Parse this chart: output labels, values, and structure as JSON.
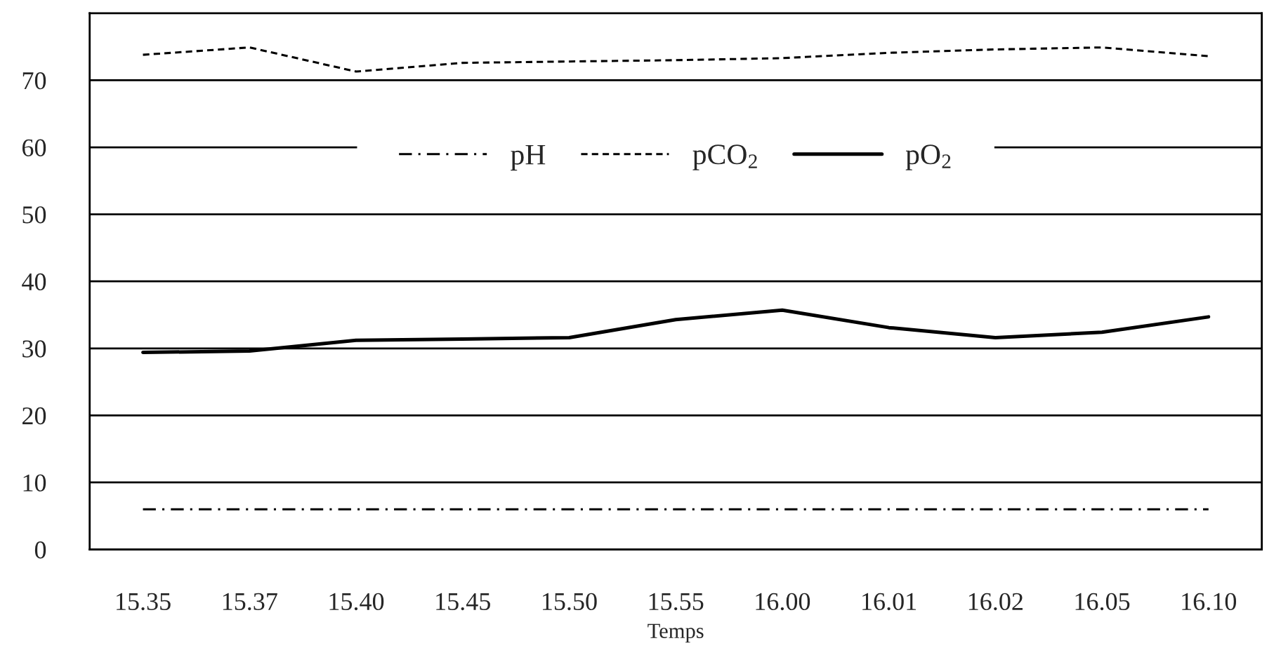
{
  "chart_data": {
    "type": "line",
    "xlabel": "Temps",
    "categories": [
      "15.35",
      "15.37",
      "15.40",
      "15.45",
      "15.50",
      "15.55",
      "16.00",
      "16.01",
      "16.02",
      "16.05",
      "16.10"
    ],
    "series": [
      {
        "name": "pH",
        "color": "#000000",
        "line_style": "dashdot",
        "values": [
          6,
          6,
          6,
          6,
          6,
          6,
          6,
          6,
          6,
          6,
          6
        ]
      },
      {
        "name": "pCO$_{2}$",
        "color": "#000000",
        "line_style": "dashed",
        "values": [
          73.8,
          74.9,
          71.3,
          72.6,
          72.8,
          73,
          73.3,
          74.1,
          74.6,
          74.9,
          73.6
        ]
      },
      {
        "name": "pO$_{2}$",
        "color": "#000000",
        "line_style": "solid",
        "values": [
          29.4,
          29.6,
          31.2,
          31.4,
          31.6,
          34.3,
          35.7,
          33.1,
          31.6,
          32.4,
          34.7
        ]
      }
    ],
    "ylim": [
      0,
      80
    ],
    "yticks": [
      0,
      10,
      20,
      30,
      40,
      50,
      60,
      70
    ],
    "grid": "y",
    "legend": "top",
    "marker": "none"
  }
}
